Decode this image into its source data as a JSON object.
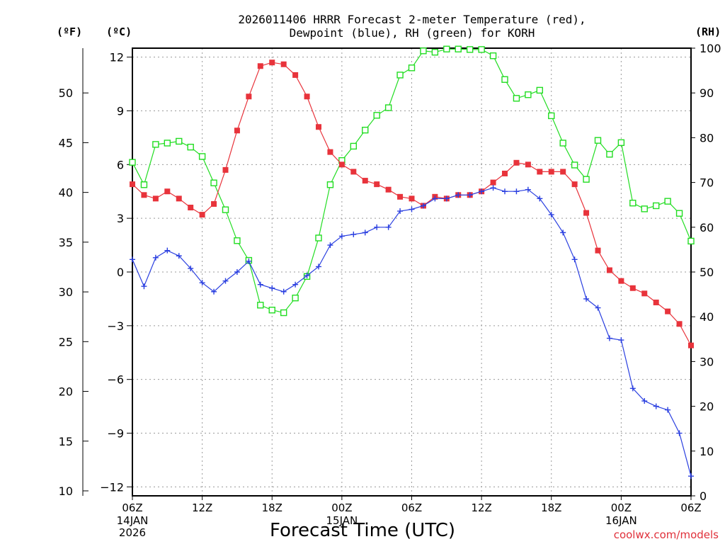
{
  "chart_data": {
    "type": "line",
    "title": [
      "2026011406 HRRR Forecast 2-meter Temperature (red),",
      "Dewpoint (blue), RH (green) for KORH"
    ],
    "xlabel": "Forecast Time (UTC)",
    "credit": "coolwx.com/models",
    "units": {
      "fahrenheit": "(ºF)",
      "celsius": "(ºC)",
      "rh": "(RH)"
    },
    "x_range": [
      0,
      48
    ],
    "x_ticks": [
      {
        "x": 0,
        "label": "06Z",
        "sub": [
          "14JAN",
          "2026"
        ]
      },
      {
        "x": 6,
        "label": "12Z",
        "sub": []
      },
      {
        "x": 12,
        "label": "18Z",
        "sub": []
      },
      {
        "x": 18,
        "label": "00Z",
        "sub": [
          "15JAN"
        ]
      },
      {
        "x": 24,
        "label": "06Z",
        "sub": []
      },
      {
        "x": 30,
        "label": "12Z",
        "sub": []
      },
      {
        "x": 36,
        "label": "18Z",
        "sub": []
      },
      {
        "x": 42,
        "label": "00Z",
        "sub": [
          "16JAN"
        ]
      },
      {
        "x": 48,
        "label": "06Z",
        "sub": []
      }
    ],
    "y_celsius": {
      "range": [
        -12.5,
        12.5
      ],
      "ticks": [
        12,
        9,
        6,
        3,
        0,
        -3,
        -6,
        -9,
        -12
      ],
      "tick_labels": [
        "12",
        "9",
        "6",
        "3",
        "0",
        "−3",
        "−6",
        "−9",
        "−12"
      ]
    },
    "y_fahrenheit": {
      "ticks": [
        50,
        45,
        40,
        35,
        30,
        25,
        20,
        15,
        10
      ]
    },
    "y_rh": {
      "range": [
        0,
        100
      ],
      "ticks": [
        100,
        90,
        80,
        70,
        60,
        50,
        40,
        30,
        20,
        10,
        0
      ]
    },
    "series": [
      {
        "name": "2-meter Temperature",
        "unit": "°C",
        "color": "#e8333b",
        "marker": "filled-square",
        "x": [
          0,
          1,
          2,
          3,
          4,
          5,
          6,
          7,
          8,
          9,
          10,
          11,
          12,
          13,
          14,
          15,
          16,
          17,
          18,
          19,
          20,
          21,
          22,
          23,
          24,
          25,
          26,
          27,
          28,
          29,
          30,
          31,
          32,
          33,
          34,
          35,
          36,
          37,
          38,
          39,
          40,
          41,
          42,
          43,
          44,
          45,
          46,
          47,
          48
        ],
        "values": [
          4.9,
          4.3,
          4.1,
          4.5,
          4.1,
          3.6,
          3.2,
          3.8,
          5.7,
          7.9,
          9.8,
          11.5,
          11.7,
          11.6,
          11.0,
          9.8,
          8.1,
          6.7,
          6.0,
          5.6,
          5.1,
          4.9,
          4.6,
          4.2,
          4.1,
          3.7,
          4.2,
          4.1,
          4.3,
          4.3,
          4.5,
          5.0,
          5.5,
          6.1,
          6.0,
          5.6,
          5.6,
          5.6,
          4.9,
          3.3,
          1.2,
          0.1,
          -0.5,
          -0.9,
          -1.2,
          -1.7,
          -2.2,
          -2.9,
          -4.1
        ]
      },
      {
        "name": "Dewpoint",
        "unit": "°C",
        "color": "#2a3fe0",
        "marker": "plus",
        "x": [
          0,
          1,
          2,
          3,
          4,
          5,
          6,
          7,
          8,
          9,
          10,
          11,
          12,
          13,
          14,
          15,
          16,
          17,
          18,
          19,
          20,
          21,
          22,
          23,
          24,
          25,
          26,
          27,
          28,
          29,
          30,
          31,
          32,
          33,
          34,
          35,
          36,
          37,
          38,
          39,
          40,
          41,
          42,
          43,
          44,
          45,
          46,
          47,
          48
        ],
        "values": [
          0.7,
          -0.8,
          0.8,
          1.2,
          0.9,
          0.2,
          -0.6,
          -1.1,
          -0.5,
          0.0,
          0.6,
          -0.7,
          -0.9,
          -1.1,
          -0.7,
          -0.2,
          0.3,
          1.5,
          2.0,
          2.1,
          2.2,
          2.5,
          2.5,
          3.4,
          3.5,
          3.7,
          4.1,
          4.1,
          4.3,
          4.3,
          4.5,
          4.7,
          4.5,
          4.5,
          4.6,
          4.1,
          3.2,
          2.2,
          0.7,
          -1.5,
          -2.0,
          -3.7,
          -3.8,
          -6.5,
          -7.2,
          -7.5,
          -7.7,
          -9.0,
          -11.4
        ]
      },
      {
        "name": "RH",
        "unit": "%",
        "color": "#22dd22",
        "marker": "open-square",
        "x": [
          0,
          1,
          2,
          3,
          4,
          5,
          6,
          7,
          8,
          9,
          10,
          11,
          12,
          13,
          14,
          15,
          16,
          17,
          18,
          19,
          20,
          21,
          22,
          23,
          24,
          25,
          26,
          27,
          28,
          29,
          30,
          31,
          32,
          33,
          34,
          35,
          36,
          37,
          38,
          39,
          40,
          41,
          42,
          43,
          44,
          45,
          46,
          47,
          48
        ],
        "values": [
          74.5,
          69.5,
          78.5,
          78.8,
          79.2,
          77.9,
          75.8,
          69.9,
          63.9,
          57.0,
          52.6,
          42.6,
          41.5,
          40.9,
          44.2,
          49.0,
          57.6,
          69.5,
          74.9,
          78.1,
          81.7,
          85.0,
          86.7,
          94.0,
          95.6,
          99.4,
          99.1,
          99.8,
          99.8,
          99.7,
          99.7,
          98.3,
          93.0,
          88.8,
          89.6,
          90.6,
          84.9,
          78.8,
          73.9,
          70.7,
          79.4,
          76.3,
          78.9,
          65.4,
          64.1,
          64.8,
          65.8,
          63.1,
          56.9
        ]
      }
    ]
  }
}
